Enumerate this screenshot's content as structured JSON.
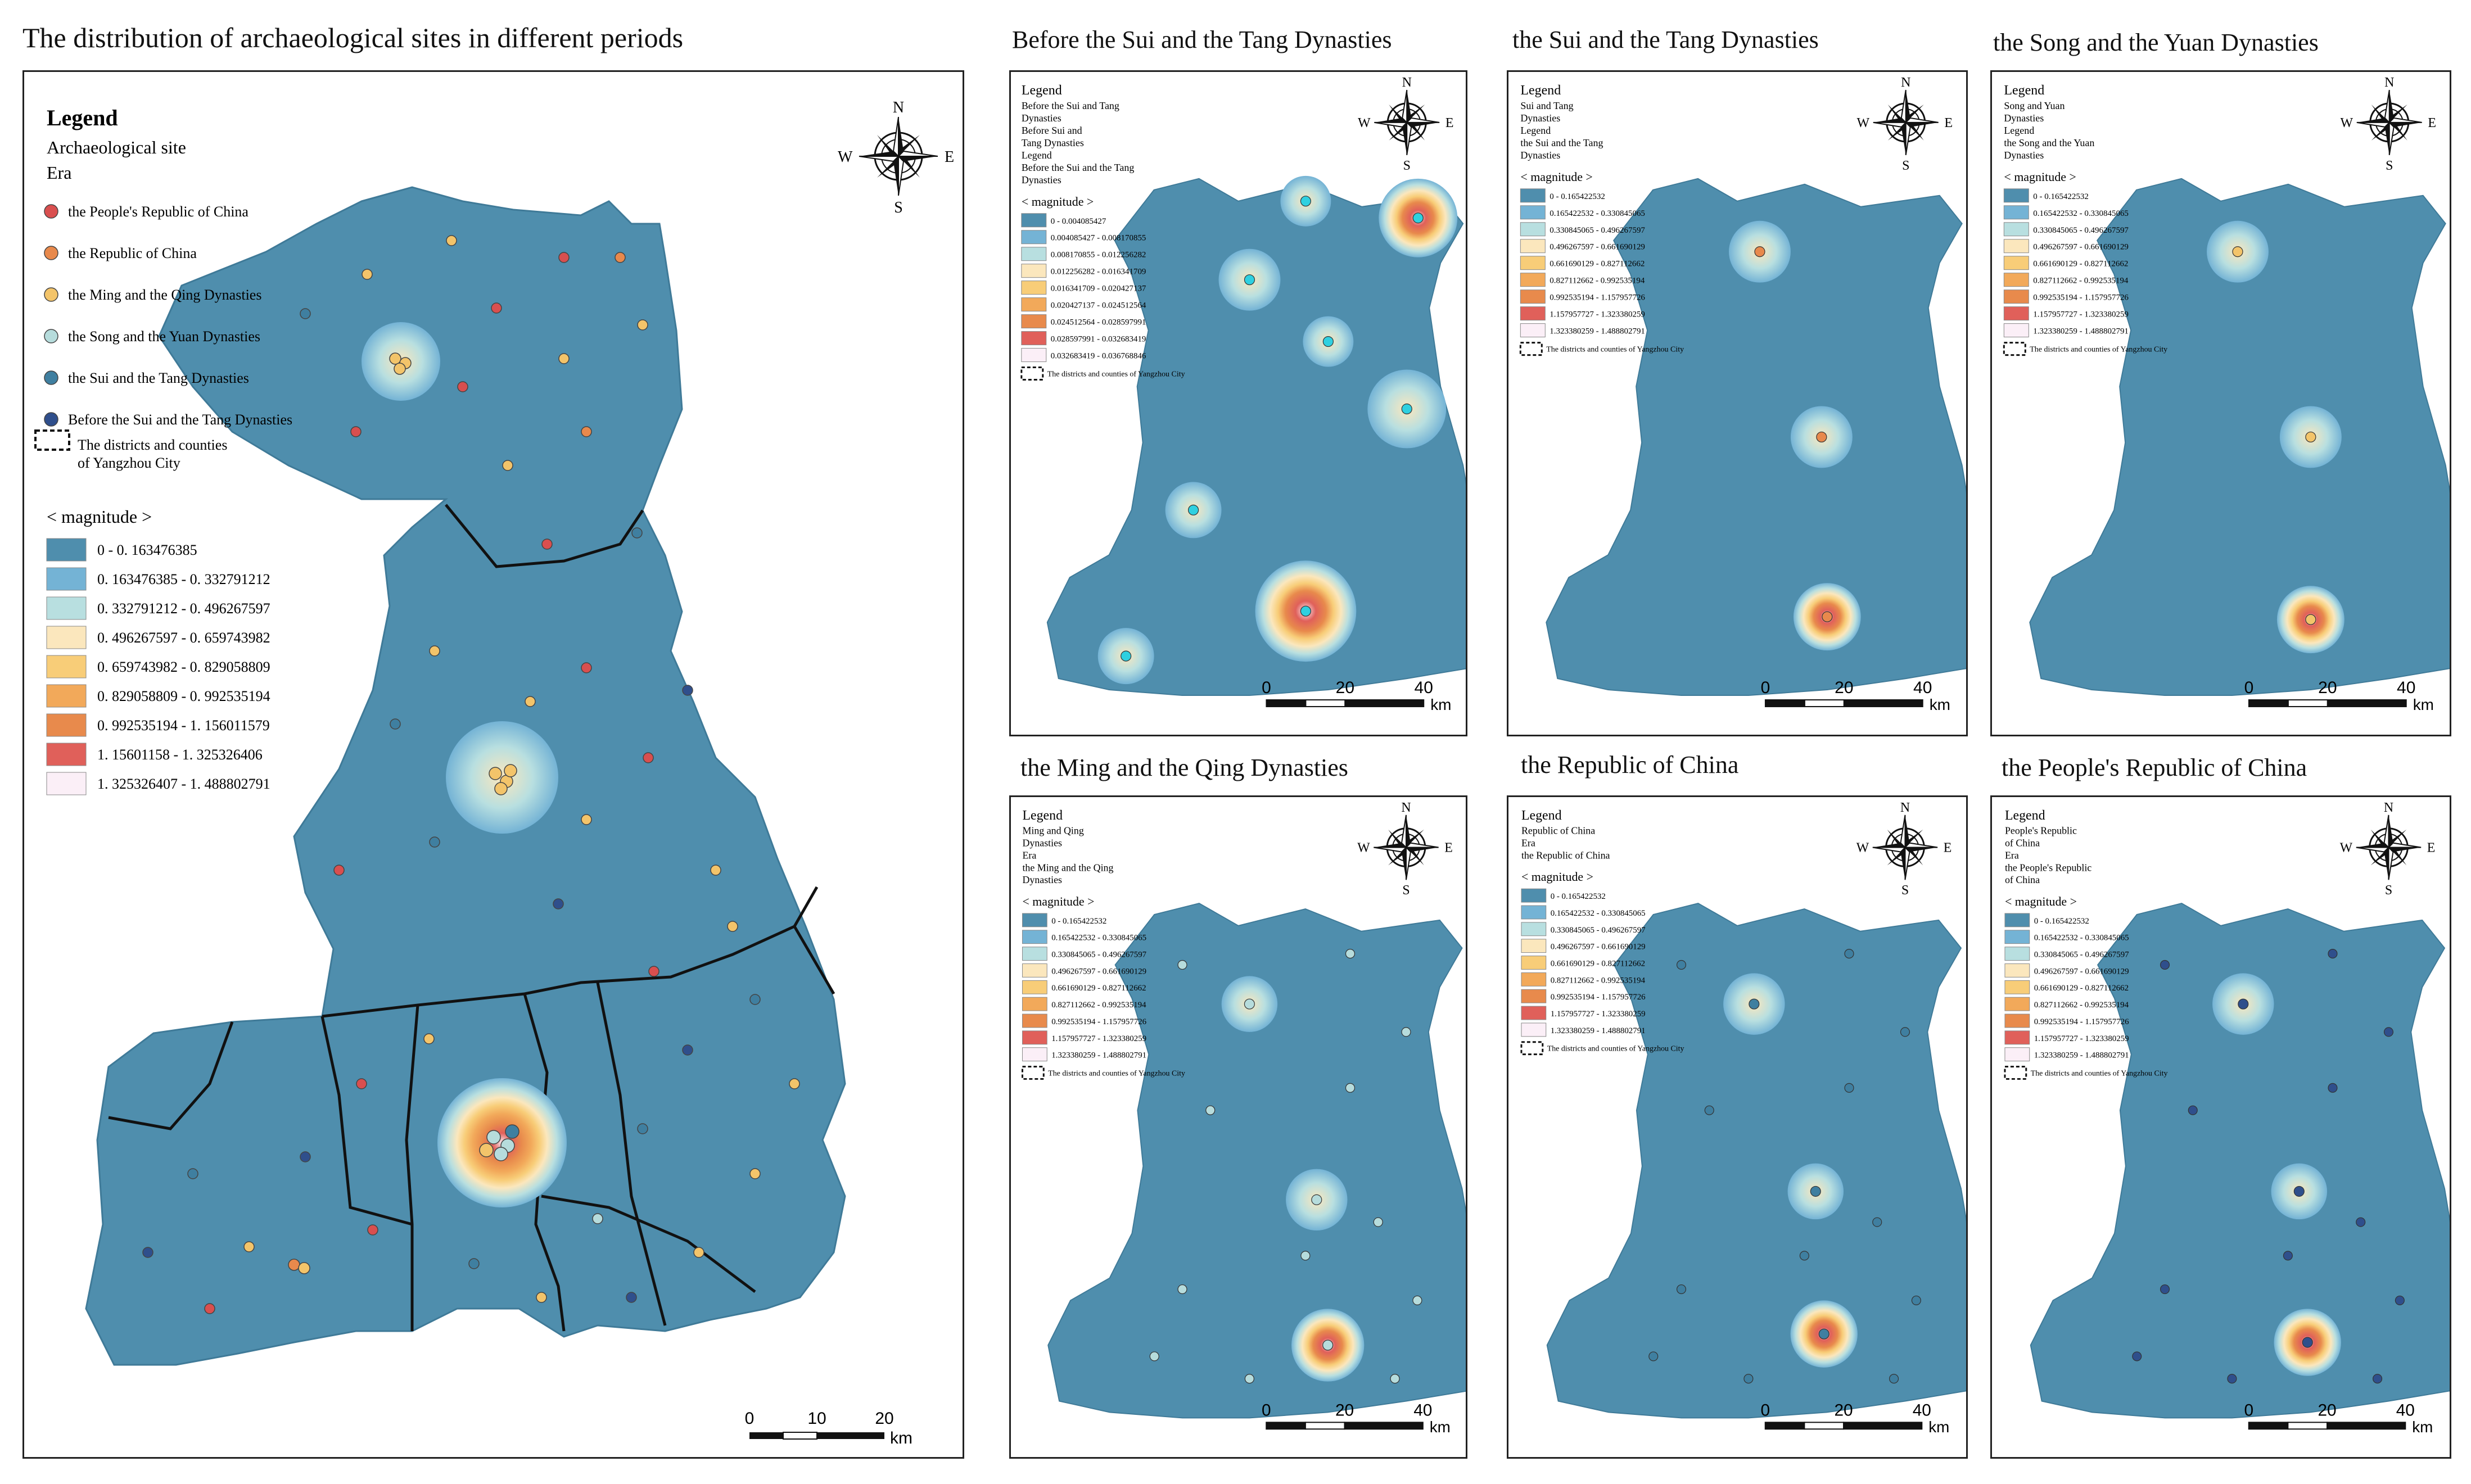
{
  "main_title": "The distribution of archaeological sites in different periods",
  "main_map": {
    "legend_heading": "Legend",
    "legend_subheading": "Archaeological site",
    "legend_era_label": "Era",
    "eras": [
      {
        "label": "the People's Republic of China",
        "color": "#d94f4f"
      },
      {
        "label": "the Republic of China",
        "color": "#e8894c"
      },
      {
        "label": "the Ming and the Qing Dynasties",
        "color": "#f3c46a"
      },
      {
        "label": "the Song and the Yuan Dynasties",
        "color": "#b6dcdc"
      },
      {
        "label": "the Sui and the Tang Dynasties",
        "color": "#3f7fa0"
      },
      {
        "label": "Before the Sui and the Tang Dynasties",
        "color": "#2f4f8c"
      }
    ],
    "boundary_label_1": "The districts and counties",
    "boundary_label_2": "of Yangzhou City",
    "magnitude_heading": "< magnitude >",
    "magnitude_classes": [
      {
        "label": "0  -  0. 163476385",
        "color": "#4f8ead"
      },
      {
        "label": "0. 163476385  -  0. 332791212",
        "color": "#74b3d5"
      },
      {
        "label": "0. 332791212  -  0. 496267597",
        "color": "#b8dfe0"
      },
      {
        "label": "0. 496267597  -  0. 659743982",
        "color": "#fbe7bd"
      },
      {
        "label": "0. 659743982  -  0. 829058809",
        "color": "#f8cd78"
      },
      {
        "label": "0. 829058809  -  0. 992535194",
        "color": "#f2a95a"
      },
      {
        "label": "0. 992535194  -  1. 156011579",
        "color": "#e88a4c"
      },
      {
        "label": "1. 15601158  -  1. 325326406",
        "color": "#e0605a"
      },
      {
        "label": "1. 325326407  -  1. 488802791",
        "color": "#fbeff7"
      }
    ],
    "scale_ticks": [
      "0",
      "10",
      "20"
    ],
    "scale_unit": "km"
  },
  "compass": {
    "n": "N",
    "s": "S",
    "e": "E",
    "w": "W"
  },
  "panels": [
    {
      "title": "Before the Sui and the Tang Dynasties",
      "legend_heading": "Legend",
      "legend_lines": [
        "Before the Sui and Tang",
        "Dynasties",
        "Before Sui and",
        "Tang Dynasties",
        "Legend",
        "Before the Sui and the Tang",
        "Dynasties"
      ],
      "magnitude_heading": "< magnitude >",
      "classes": [
        "0 - 0.004085427",
        "0.004085427 - 0.008170855",
        "0.008170855 - 0.012256282",
        "0.012256282 - 0.016341709",
        "0.016341709 - 0.020427137",
        "0.020427137 - 0.024512564",
        "0.024512564 - 0.028597991",
        "0.028597991 - 0.032683419",
        "0.032683419 - 0.036768846"
      ],
      "boundary_label": "The districts and counties of Yangzhou City",
      "scale_ticks": [
        "0",
        "20",
        "40"
      ],
      "scale_unit": "km"
    },
    {
      "title": "the Sui and the Tang Dynasties",
      "legend_heading": "Legend",
      "legend_lines": [
        "Sui and Tang",
        "Dynasties",
        "Legend",
        "the Sui and the Tang",
        "Dynasties"
      ],
      "magnitude_heading": "< magnitude >",
      "classes": [
        "0 - 0.165422532",
        "0.165422532 - 0.330845065",
        "0.330845065 - 0.496267597",
        "0.496267597 - 0.661690129",
        "0.661690129 - 0.827112662",
        "0.827112662 - 0.992535194",
        "0.992535194 - 1.157957726",
        "1.157957727 - 1.323380259",
        "1.323380259 - 1.488802791"
      ],
      "boundary_label": "The districts and counties of Yangzhou City",
      "scale_ticks": [
        "0",
        "20",
        "40"
      ],
      "scale_unit": "km"
    },
    {
      "title": "the Song and the Yuan Dynasties",
      "legend_heading": "Legend",
      "legend_lines": [
        "Song and Yuan",
        "Dynasties",
        "Legend",
        "the Song and the Yuan",
        "Dynasties"
      ],
      "magnitude_heading": "< magnitude >",
      "classes": [
        "0 - 0.165422532",
        "0.165422532 - 0.330845065",
        "0.330845065 - 0.496267597",
        "0.496267597 - 0.661690129",
        "0.661690129 - 0.827112662",
        "0.827112662 - 0.992535194",
        "0.992535194 - 1.157957726",
        "1.157957727 - 1.323380259",
        "1.323380259 - 1.488802791"
      ],
      "boundary_label": "The districts and counties of Yangzhou City",
      "scale_ticks": [
        "0",
        "20",
        "40"
      ],
      "scale_unit": "km"
    },
    {
      "title": "the Ming and the Qing Dynasties",
      "legend_heading": "Legend",
      "legend_lines": [
        "Ming and Qing",
        "Dynasties",
        "Era",
        "the Ming and the Qing",
        "Dynasties"
      ],
      "magnitude_heading": "< magnitude >",
      "classes": [
        "0 - 0.165422532",
        "0.165422532 - 0.330845065",
        "0.330845065 - 0.496267597",
        "0.496267597 - 0.661690129",
        "0.661690129 - 0.827112662",
        "0.827112662 - 0.992535194",
        "0.992535194 - 1.157957726",
        "1.157957727 - 1.323380259",
        "1.323380259 - 1.488802791"
      ],
      "boundary_label": "The districts and counties of Yangzhou City",
      "scale_ticks": [
        "0",
        "20",
        "40"
      ],
      "scale_unit": "km"
    },
    {
      "title": "the Republic of China",
      "legend_heading": "Legend",
      "legend_lines": [
        "Republic of China",
        "Era",
        "the Republic of China"
      ],
      "magnitude_heading": "< magnitude >",
      "classes": [
        "0 - 0.165422532",
        "0.165422532 - 0.330845065",
        "0.330845065 - 0.496267597",
        "0.496267597 - 0.661690129",
        "0.661690129 - 0.827112662",
        "0.827112662 - 0.992535194",
        "0.992535194 - 1.157957726",
        "1.157957727 - 1.323380259",
        "1.323380259 - 1.488802791"
      ],
      "boundary_label": "The districts and counties of Yangzhou City",
      "scale_ticks": [
        "0",
        "20",
        "40"
      ],
      "scale_unit": "km"
    },
    {
      "title": "the People's Republic of China",
      "legend_heading": "Legend",
      "legend_lines": [
        "People's Republic",
        "of China",
        "Era",
        "the People's Republic",
        "of China"
      ],
      "magnitude_heading": "< magnitude >",
      "classes": [
        "0 - 0.165422532",
        "0.165422532 - 0.330845065",
        "0.330845065 - 0.496267597",
        "0.496267597 - 0.661690129",
        "0.661690129 - 0.827112662",
        "0.827112662 - 0.992535194",
        "0.992535194 - 1.157957726",
        "1.157957727 - 1.323380259",
        "1.323380259 - 1.488802791"
      ],
      "boundary_label": "The districts and counties of Yangzhou City",
      "scale_ticks": [
        "0",
        "20",
        "40"
      ],
      "scale_unit": "km"
    }
  ]
}
